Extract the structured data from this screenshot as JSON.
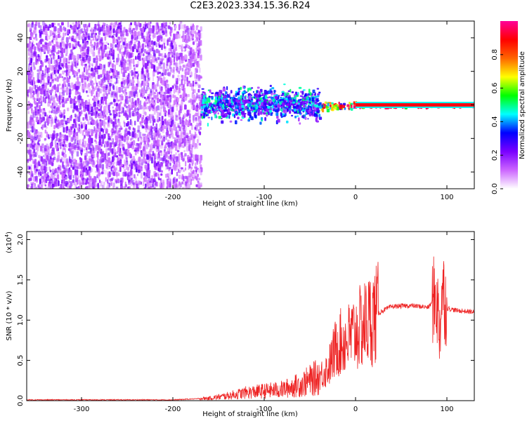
{
  "title": "C2E3.2023.334.15.36.R24",
  "colors": {
    "snr_line": "#ee2222",
    "colormap": [
      "#ffffff",
      "#cc66ff",
      "#7a00ff",
      "#0000ff",
      "#00ffff",
      "#00ff00",
      "#ffff00",
      "#ff6600",
      "#ff0000",
      "#ff0099"
    ]
  },
  "chart_data": [
    {
      "type": "heatmap",
      "xlabel": "Height of straight line (km)",
      "ylabel": "Frequency (Hz)",
      "xlim": [
        -360,
        130
      ],
      "ylim": [
        -50,
        50
      ],
      "x_ticks": [
        {
          "value": -300,
          "label": "-300"
        },
        {
          "value": -200,
          "label": "-200"
        },
        {
          "value": -100,
          "label": "-100"
        },
        {
          "value": 0,
          "label": "0"
        },
        {
          "value": 100,
          "label": "100"
        }
      ],
      "y_ticks": [
        {
          "value": -40,
          "label": "-40"
        },
        {
          "value": -20,
          "label": "-20"
        },
        {
          "value": 0,
          "label": "0"
        },
        {
          "value": 20,
          "label": "20"
        },
        {
          "value": 40,
          "label": "40"
        }
      ],
      "colorbar": {
        "label": "Normalized spectral amplitude",
        "range": [
          0,
          1
        ],
        "ticks": [
          {
            "value": 0.0,
            "label": "0.0"
          },
          {
            "value": 0.2,
            "label": "0.2"
          },
          {
            "value": 0.4,
            "label": "0.4"
          },
          {
            "value": 0.6,
            "label": "0.6"
          },
          {
            "value": 0.8,
            "label": "0.8"
          }
        ]
      },
      "regions": [
        {
          "x_range": [
            -360,
            -200
          ],
          "freq_range": [
            -50,
            50
          ],
          "amplitude": 0.15,
          "description_kind": "noise"
        },
        {
          "x_range": [
            -200,
            -170
          ],
          "freq_range": [
            -50,
            50
          ],
          "amplitude": 0.12,
          "description_kind": "noise"
        },
        {
          "x_range": [
            -170,
            -40
          ],
          "freq_range": [
            -12,
            14
          ],
          "amplitude": 0.25
        },
        {
          "x_range": [
            -40,
            0
          ],
          "freq_range": [
            -3,
            3
          ],
          "amplitude": 0.55
        },
        {
          "x_range": [
            0,
            130
          ],
          "freq_range": [
            -1,
            1
          ],
          "amplitude": 0.9
        }
      ]
    },
    {
      "type": "line",
      "xlabel": "Height of straight line (km)",
      "ylabel": "SNR (10 * v/v)",
      "y_multiplier": "(x10",
      "y_multiplier_exp": "4",
      "xlim": [
        -360,
        130
      ],
      "ylim": [
        0,
        2.1
      ],
      "x_ticks": [
        {
          "value": -300,
          "label": "-300"
        },
        {
          "value": -200,
          "label": "-200"
        },
        {
          "value": -100,
          "label": "-100"
        },
        {
          "value": 0,
          "label": "0"
        },
        {
          "value": 100,
          "label": "100"
        }
      ],
      "y_ticks": [
        {
          "value": 0.0,
          "label": "0.0"
        },
        {
          "value": 0.5,
          "label": "0.5"
        },
        {
          "value": 1.0,
          "label": "1.0"
        },
        {
          "value": 1.5,
          "label": "1.5"
        },
        {
          "value": 2.0,
          "label": "2.0"
        }
      ],
      "series": [
        {
          "x": [
            -360,
            -300,
            -250,
            -200,
            -180,
            -160,
            -140,
            -120,
            -100,
            -80,
            -60,
            -40,
            -30,
            -20,
            -10,
            0,
            10,
            20,
            30,
            40,
            60,
            80,
            88,
            92,
            95,
            100,
            110,
            130
          ],
          "y": [
            0.01,
            0.01,
            0.01,
            0.01,
            0.02,
            0.03,
            0.06,
            0.1,
            0.12,
            0.14,
            0.2,
            0.3,
            0.4,
            0.7,
            0.75,
            0.85,
            0.95,
            1.05,
            1.12,
            1.17,
            1.18,
            1.16,
            1.3,
            0.9,
            1.4,
            1.15,
            1.12,
            1.1
          ]
        }
      ]
    }
  ]
}
